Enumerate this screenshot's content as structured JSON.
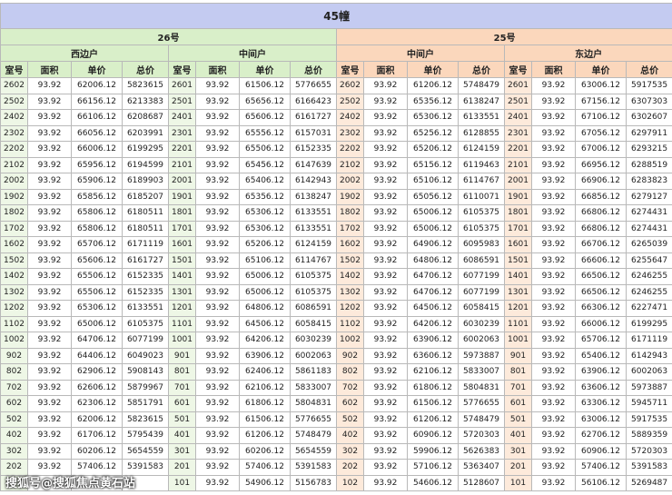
{
  "title": "45幢",
  "columns": [
    "室号",
    "面积",
    "单价",
    "总价"
  ],
  "watermark": "搜狐号@搜狐焦点黄石站",
  "buildings": [
    {
      "name": "26号",
      "sections": [
        {
          "name": "西边户",
          "rows": [
            [
              "2602",
              "93.92",
              "62006.12",
              "5823615"
            ],
            [
              "2502",
              "93.92",
              "66156.12",
              "6213383"
            ],
            [
              "2402",
              "93.92",
              "66106.12",
              "6208687"
            ],
            [
              "2302",
              "93.92",
              "66056.12",
              "6203991"
            ],
            [
              "2202",
              "93.92",
              "66006.12",
              "6199295"
            ],
            [
              "2102",
              "93.92",
              "65956.12",
              "6194599"
            ],
            [
              "2002",
              "93.92",
              "65906.12",
              "6189903"
            ],
            [
              "1902",
              "93.92",
              "65856.12",
              "6185207"
            ],
            [
              "1802",
              "93.92",
              "65806.12",
              "6180511"
            ],
            [
              "1702",
              "93.92",
              "65806.12",
              "6180511"
            ],
            [
              "1602",
              "93.92",
              "65706.12",
              "6171119"
            ],
            [
              "1502",
              "93.92",
              "65606.12",
              "6161727"
            ],
            [
              "1402",
              "93.92",
              "65506.12",
              "6152335"
            ],
            [
              "1302",
              "93.92",
              "65506.12",
              "6152335"
            ],
            [
              "1202",
              "93.92",
              "65306.12",
              "6133551"
            ],
            [
              "1102",
              "93.92",
              "65006.12",
              "6105375"
            ],
            [
              "1002",
              "93.92",
              "64706.12",
              "6077199"
            ],
            [
              "902",
              "93.92",
              "64406.12",
              "6049023"
            ],
            [
              "802",
              "93.92",
              "62906.12",
              "5908143"
            ],
            [
              "702",
              "93.92",
              "62606.12",
              "5879967"
            ],
            [
              "602",
              "93.92",
              "62306.12",
              "5851791"
            ],
            [
              "502",
              "93.92",
              "62006.12",
              "5823615"
            ],
            [
              "402",
              "93.92",
              "61706.12",
              "5795439"
            ],
            [
              "302",
              "93.92",
              "60206.12",
              "5654559"
            ],
            [
              "202",
              "93.92",
              "57406.12",
              "5391583"
            ]
          ]
        },
        {
          "name": "中间户",
          "rows": [
            [
              "2601",
              "93.92",
              "61506.12",
              "5776655"
            ],
            [
              "2501",
              "93.92",
              "65656.12",
              "6166423"
            ],
            [
              "2401",
              "93.92",
              "65606.12",
              "6161727"
            ],
            [
              "2301",
              "93.92",
              "65556.12",
              "6157031"
            ],
            [
              "2201",
              "93.92",
              "65506.12",
              "6152335"
            ],
            [
              "2101",
              "93.92",
              "65456.12",
              "6147639"
            ],
            [
              "2001",
              "93.92",
              "65406.12",
              "6142943"
            ],
            [
              "1901",
              "93.92",
              "65356.12",
              "6138247"
            ],
            [
              "1801",
              "93.92",
              "65306.12",
              "6133551"
            ],
            [
              "1701",
              "93.92",
              "65306.12",
              "6133551"
            ],
            [
              "1601",
              "93.92",
              "65206.12",
              "6124159"
            ],
            [
              "1501",
              "93.92",
              "65106.12",
              "6114767"
            ],
            [
              "1401",
              "93.92",
              "65006.12",
              "6105375"
            ],
            [
              "1301",
              "93.92",
              "65006.12",
              "6105375"
            ],
            [
              "1201",
              "93.92",
              "64806.12",
              "6086591"
            ],
            [
              "1101",
              "93.92",
              "64506.12",
              "6058415"
            ],
            [
              "1001",
              "93.92",
              "64206.12",
              "6030239"
            ],
            [
              "901",
              "93.92",
              "63906.12",
              "6002063"
            ],
            [
              "801",
              "93.92",
              "62406.12",
              "5861183"
            ],
            [
              "701",
              "93.92",
              "62106.12",
              "5833007"
            ],
            [
              "601",
              "93.92",
              "61806.12",
              "5804831"
            ],
            [
              "501",
              "93.92",
              "61506.12",
              "5776655"
            ],
            [
              "401",
              "93.92",
              "61206.12",
              "5748479"
            ],
            [
              "301",
              "93.92",
              "60206.12",
              "5654559"
            ],
            [
              "201",
              "93.92",
              "57406.12",
              "5391583"
            ],
            [
              "101",
              "93.92",
              "54906.12",
              "5156783"
            ]
          ]
        }
      ]
    },
    {
      "name": "25号",
      "sections": [
        {
          "name": "中间户",
          "rows": [
            [
              "2602",
              "93.92",
              "61206.12",
              "5748479"
            ],
            [
              "2502",
              "93.92",
              "65356.12",
              "6138247"
            ],
            [
              "2402",
              "93.92",
              "65306.12",
              "6133551"
            ],
            [
              "2302",
              "93.92",
              "65256.12",
              "6128855"
            ],
            [
              "2202",
              "93.92",
              "65206.12",
              "6124159"
            ],
            [
              "2102",
              "93.92",
              "65156.12",
              "6119463"
            ],
            [
              "2002",
              "93.92",
              "65106.12",
              "6114767"
            ],
            [
              "1902",
              "93.92",
              "65056.12",
              "6110071"
            ],
            [
              "1802",
              "93.92",
              "65006.12",
              "6105375"
            ],
            [
              "1702",
              "93.92",
              "65006.12",
              "6105375"
            ],
            [
              "1602",
              "93.92",
              "64906.12",
              "6095983"
            ],
            [
              "1502",
              "93.92",
              "64806.12",
              "6086591"
            ],
            [
              "1402",
              "93.92",
              "64706.12",
              "6077199"
            ],
            [
              "1302",
              "93.92",
              "64706.12",
              "6077199"
            ],
            [
              "1202",
              "93.92",
              "64506.12",
              "6058415"
            ],
            [
              "1102",
              "93.92",
              "64206.12",
              "6030239"
            ],
            [
              "1002",
              "93.92",
              "63906.12",
              "6002063"
            ],
            [
              "902",
              "93.92",
              "63606.12",
              "5973887"
            ],
            [
              "802",
              "93.92",
              "62106.12",
              "5833007"
            ],
            [
              "702",
              "93.92",
              "61806.12",
              "5804831"
            ],
            [
              "602",
              "93.92",
              "61506.12",
              "5776655"
            ],
            [
              "502",
              "93.92",
              "61206.12",
              "5748479"
            ],
            [
              "402",
              "93.92",
              "60906.12",
              "5720303"
            ],
            [
              "302",
              "93.92",
              "59906.12",
              "5626383"
            ],
            [
              "202",
              "93.92",
              "57106.12",
              "5363407"
            ],
            [
              "102",
              "93.92",
              "54606.12",
              "5128607"
            ]
          ]
        },
        {
          "name": "东边户",
          "rows": [
            [
              "2601",
              "93.92",
              "63006.12",
              "5917535"
            ],
            [
              "2501",
              "93.92",
              "67156.12",
              "6307303"
            ],
            [
              "2401",
              "93.92",
              "67106.12",
              "6302607"
            ],
            [
              "2301",
              "93.92",
              "67056.12",
              "6297911"
            ],
            [
              "2201",
              "93.92",
              "67006.12",
              "6293215"
            ],
            [
              "2101",
              "93.92",
              "66956.12",
              "6288519"
            ],
            [
              "2001",
              "93.92",
              "66906.12",
              "6283823"
            ],
            [
              "1901",
              "93.92",
              "66856.12",
              "6279127"
            ],
            [
              "1801",
              "93.92",
              "66806.12",
              "6274431"
            ],
            [
              "1701",
              "93.92",
              "66806.12",
              "6274431"
            ],
            [
              "1601",
              "93.92",
              "66706.12",
              "6265039"
            ],
            [
              "1501",
              "93.92",
              "66606.12",
              "6255647"
            ],
            [
              "1401",
              "93.92",
              "66506.12",
              "6246255"
            ],
            [
              "1301",
              "93.92",
              "66506.12",
              "6246255"
            ],
            [
              "1201",
              "93.92",
              "66306.12",
              "6227471"
            ],
            [
              "1101",
              "93.92",
              "66006.12",
              "6199295"
            ],
            [
              "1001",
              "93.92",
              "65706.12",
              "6171119"
            ],
            [
              "901",
              "93.92",
              "65406.12",
              "6142943"
            ],
            [
              "801",
              "93.92",
              "63906.12",
              "6002063"
            ],
            [
              "701",
              "93.92",
              "63606.12",
              "5973887"
            ],
            [
              "601",
              "93.92",
              "63306.12",
              "5945711"
            ],
            [
              "501",
              "93.92",
              "63006.12",
              "5917535"
            ],
            [
              "401",
              "93.92",
              "62706.12",
              "5889359"
            ],
            [
              "301",
              "93.92",
              "60906.12",
              "5720303"
            ],
            [
              "201",
              "93.92",
              "57406.12",
              "5391583"
            ],
            [
              "101",
              "93.92",
              "56106.12",
              "5269487"
            ]
          ]
        }
      ]
    }
  ]
}
